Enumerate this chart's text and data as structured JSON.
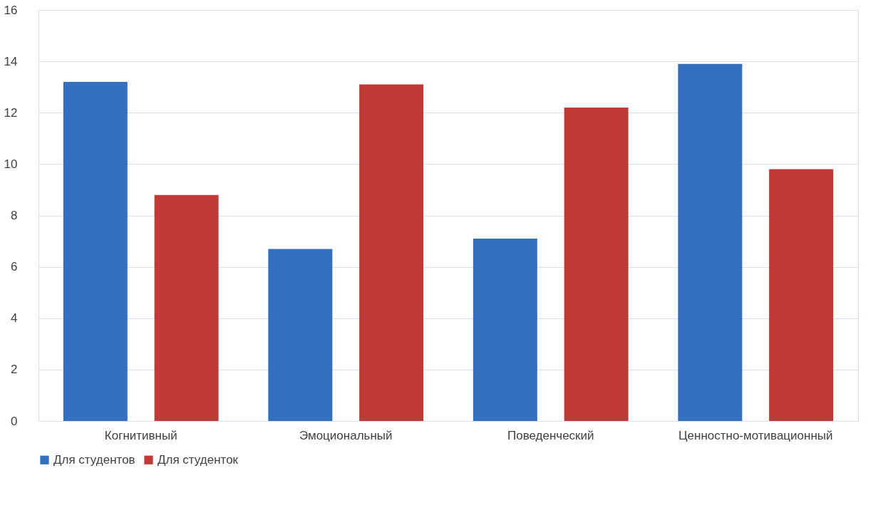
{
  "chart_data": {
    "type": "bar",
    "categories": [
      "Когнитивный",
      "Эмоциональный",
      "Поведенческий",
      "Ценностно-мотивационный"
    ],
    "series": [
      {
        "name": "Для студентов",
        "color": "#3470bf",
        "values": [
          13.2,
          6.7,
          7.1,
          13.9
        ]
      },
      {
        "name": "Для студенток",
        "color": "#c03a37",
        "values": [
          8.8,
          13.1,
          12.2,
          9.8
        ]
      }
    ],
    "ylim": [
      0,
      16
    ],
    "yticks": [
      0,
      2,
      4,
      6,
      8,
      10,
      12,
      14,
      16
    ],
    "grid": "y",
    "legend": "bottom"
  }
}
